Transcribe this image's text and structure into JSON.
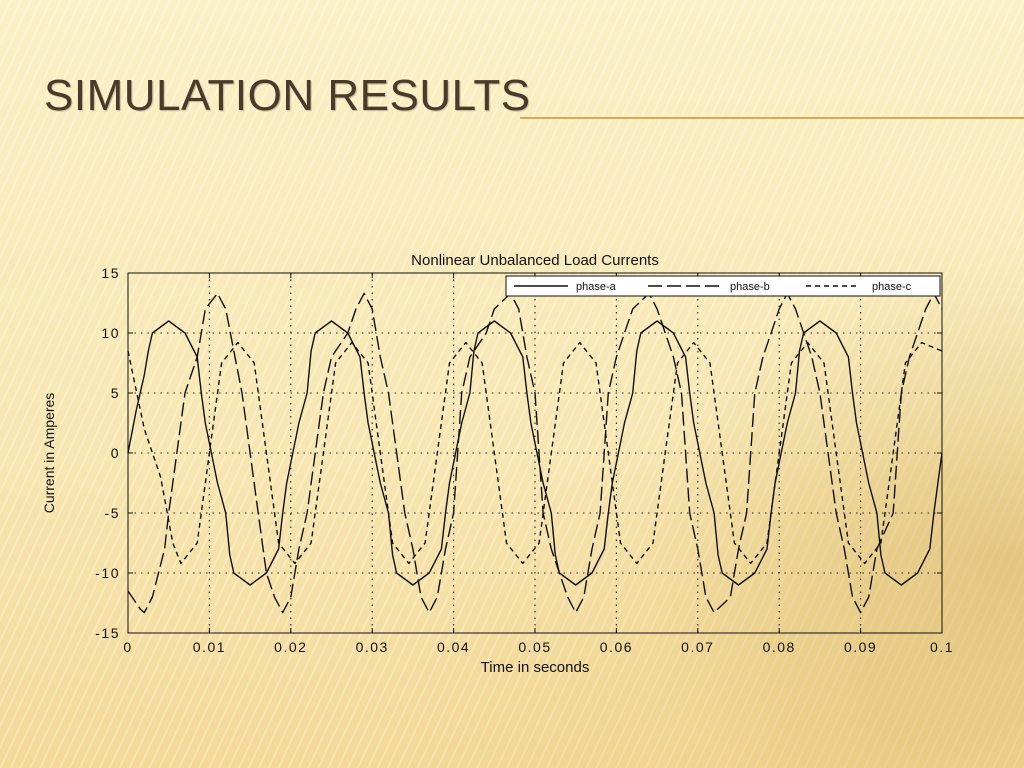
{
  "slide": {
    "title": "SIMULATION RESULTS"
  },
  "colors": {
    "accent_rule": "#e2a94b",
    "title": "#4a3a2c",
    "ink": "#111111"
  },
  "chart_data": {
    "type": "line",
    "title": "Nonlinear Unbalanced Load Currents",
    "xlabel": "Time in seconds",
    "ylabel": "Current in Amperes",
    "xlim": [
      0,
      0.1
    ],
    "ylim": [
      -15,
      15
    ],
    "xticks": [
      0,
      0.01,
      0.02,
      0.03,
      0.04,
      0.05,
      0.06,
      0.07,
      0.08,
      0.09,
      0.1
    ],
    "xtick_labels": [
      "0",
      "0.01",
      "0.02",
      "0.03",
      "0.04",
      "0.05",
      "0.06",
      "0.07",
      "0.08",
      "0.09",
      "0.1"
    ],
    "yticks": [
      15,
      10,
      5,
      0,
      -5,
      -10,
      -15
    ],
    "ytick_labels": [
      "15",
      "10",
      "5",
      "0",
      "-5",
      "-10",
      "-15"
    ],
    "grid": true,
    "legend_position": "top-right",
    "series": [
      {
        "name": "phase-a",
        "style": "solid",
        "x": [
          0,
          0.001,
          0.002,
          0.0025,
          0.003,
          0.005,
          0.007,
          0.0085,
          0.009,
          0.0095,
          0.011,
          0.012,
          0.0125,
          0.013,
          0.015,
          0.017,
          0.0185,
          0.019,
          0.0195,
          0.021,
          0.022,
          0.0225,
          0.023,
          0.025,
          0.027,
          0.0285,
          0.029,
          0.0295,
          0.031,
          0.032,
          0.0325,
          0.033,
          0.035,
          0.037,
          0.0385,
          0.039,
          0.0395,
          0.041,
          0.042,
          0.0425,
          0.043,
          0.045,
          0.047,
          0.0485,
          0.049,
          0.0495,
          0.051,
          0.052,
          0.0525,
          0.053,
          0.055,
          0.057,
          0.0585,
          0.059,
          0.0595,
          0.061,
          0.062,
          0.0625,
          0.063,
          0.065,
          0.067,
          0.0685,
          0.069,
          0.0695,
          0.071,
          0.072,
          0.0725,
          0.073,
          0.075,
          0.077,
          0.0785,
          0.079,
          0.0795,
          0.081,
          0.082,
          0.0825,
          0.083,
          0.085,
          0.087,
          0.0885,
          0.089,
          0.0895,
          0.091,
          0.092,
          0.0925,
          0.093,
          0.095,
          0.097,
          0.0985,
          0.099,
          0.0995,
          0.1
        ],
        "y": [
          0,
          3.5,
          6.5,
          8.5,
          10,
          11,
          10,
          8,
          5,
          2.5,
          -2.5,
          -5,
          -8.5,
          -10,
          -11,
          -10,
          -8,
          -5,
          -2.5,
          2.5,
          5,
          8.5,
          10,
          11,
          10,
          8,
          5,
          2.5,
          -2.5,
          -5,
          -8.5,
          -10,
          -11,
          -10,
          -8,
          -5,
          -2.5,
          2.5,
          5,
          8.5,
          10,
          11,
          10,
          8,
          5,
          2.5,
          -2.5,
          -5,
          -8.5,
          -10,
          -11,
          -10,
          -8,
          -5,
          -2.5,
          2.5,
          5,
          8.5,
          10,
          11,
          10,
          8,
          5,
          2.5,
          -2.5,
          -5,
          -8.5,
          -10,
          -11,
          -10,
          -8,
          -5,
          -2.5,
          2.5,
          5,
          8.5,
          10,
          11,
          10,
          8,
          5,
          2.5,
          -2.5,
          -5,
          -8.5,
          -10,
          -11,
          -10,
          -8,
          -5,
          -2.5,
          0
        ]
      },
      {
        "name": "phase-b",
        "style": "long-dash",
        "x": [
          0,
          0.0015,
          0.002,
          0.003,
          0.0045,
          0.005,
          0.007,
          0.0085,
          0.009,
          0.0095,
          0.011,
          0.012,
          0.014,
          0.015,
          0.016,
          0.017,
          0.018,
          0.019,
          0.02,
          0.021,
          0.022,
          0.024,
          0.025,
          0.027,
          0.028,
          0.029,
          0.03,
          0.031,
          0.032,
          0.034,
          0.035,
          0.036,
          0.037,
          0.038,
          0.039,
          0.04,
          0.041,
          0.042,
          0.044,
          0.045,
          0.047,
          0.048,
          0.049,
          0.05,
          0.051,
          0.052,
          0.054,
          0.055,
          0.056,
          0.057,
          0.058,
          0.059,
          0.06,
          0.061,
          0.062,
          0.064,
          0.065,
          0.067,
          0.068,
          0.069,
          0.07,
          0.071,
          0.072,
          0.074,
          0.075,
          0.076,
          0.077,
          0.078,
          0.079,
          0.08,
          0.081,
          0.082,
          0.084,
          0.085,
          0.087,
          0.088,
          0.089,
          0.09,
          0.091,
          0.092,
          0.094,
          0.095,
          0.096,
          0.097,
          0.098,
          0.099,
          0.1
        ],
        "y": [
          -11.5,
          -13,
          -13.3,
          -12,
          -8,
          -5,
          5,
          8,
          10,
          12,
          13.3,
          12,
          5,
          0,
          -5,
          -10,
          -12,
          -13.3,
          -12,
          -8,
          -5,
          5,
          8,
          10,
          12,
          13.3,
          12,
          8,
          5,
          -5,
          -8,
          -12,
          -13.3,
          -12,
          -8,
          -5,
          5,
          8,
          10,
          12,
          13.3,
          12,
          8,
          5,
          -5,
          -8,
          -12,
          -13.3,
          -12,
          -8,
          -5,
          5,
          8,
          10,
          12,
          13.3,
          12,
          8,
          5,
          -5,
          -8,
          -12,
          -13.3,
          -12,
          -8,
          -5,
          5,
          8,
          10,
          12,
          13.3,
          12,
          8,
          5,
          -5,
          -8,
          -12,
          -13.3,
          -12,
          -8,
          -5,
          5,
          8,
          10,
          12,
          13.3,
          12
        ]
      },
      {
        "name": "phase-c",
        "style": "dashed",
        "x": [
          0,
          0.002,
          0.004,
          0.0055,
          0.0065,
          0.0085,
          0.01,
          0.0115,
          0.0135,
          0.0155,
          0.017,
          0.0185,
          0.0205,
          0.0225,
          0.024,
          0.0255,
          0.0275,
          0.0295,
          0.031,
          0.0325,
          0.0345,
          0.0365,
          0.038,
          0.0395,
          0.0415,
          0.0435,
          0.045,
          0.0465,
          0.0485,
          0.0505,
          0.052,
          0.0535,
          0.0555,
          0.0575,
          0.059,
          0.0605,
          0.0625,
          0.0645,
          0.066,
          0.0675,
          0.0695,
          0.0715,
          0.073,
          0.0745,
          0.0765,
          0.0785,
          0.08,
          0.0815,
          0.0835,
          0.0855,
          0.087,
          0.0885,
          0.0905,
          0.0925,
          0.094,
          0.0955,
          0.0975,
          0.1
        ],
        "y": [
          8.5,
          2,
          -2,
          -7.5,
          -9.2,
          -7.5,
          0,
          7.5,
          9.2,
          7.5,
          0,
          -7.5,
          -9.2,
          -7.5,
          0,
          7.5,
          9.2,
          7.5,
          0,
          -7.5,
          -9.2,
          -7.5,
          0,
          7.5,
          9.2,
          7.5,
          0,
          -7.5,
          -9.2,
          -7.5,
          0,
          7.5,
          9.2,
          7.5,
          0,
          -7.5,
          -9.2,
          -7.5,
          0,
          7.5,
          9.2,
          7.5,
          0,
          -7.5,
          -9.2,
          -7.5,
          0,
          7.5,
          9.2,
          7.5,
          0,
          -7.5,
          -9.2,
          -7.5,
          0,
          7.5,
          9.2,
          8.5
        ]
      }
    ]
  }
}
